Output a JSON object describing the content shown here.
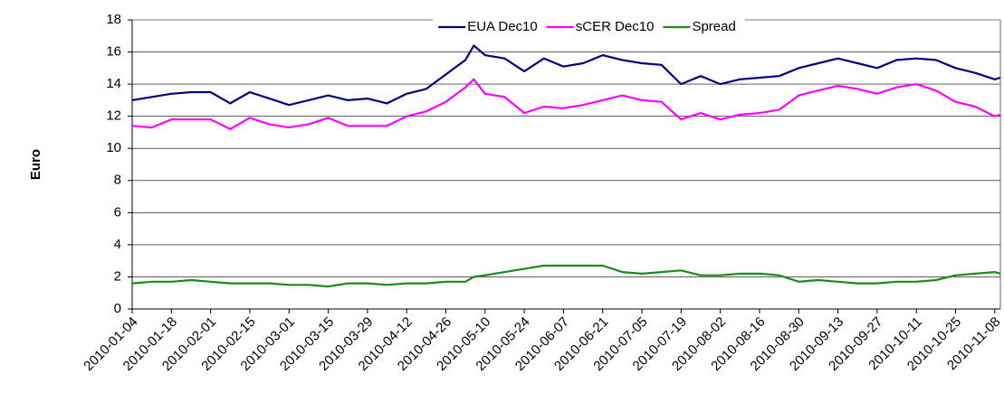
{
  "chart_data": {
    "type": "line",
    "y_label": "Euro",
    "x": [
      "2010-01-04",
      "2010-01-11",
      "2010-01-18",
      "2010-01-25",
      "2010-02-01",
      "2010-02-08",
      "2010-02-15",
      "2010-02-22",
      "2010-03-01",
      "2010-03-08",
      "2010-03-15",
      "2010-03-22",
      "2010-03-29",
      "2010-04-05",
      "2010-04-12",
      "2010-04-19",
      "2010-04-26",
      "2010-05-03",
      "2010-05-06",
      "2010-05-10",
      "2010-05-17",
      "2010-05-24",
      "2010-05-31",
      "2010-06-07",
      "2010-06-14",
      "2010-06-21",
      "2010-06-28",
      "2010-07-05",
      "2010-07-12",
      "2010-07-19",
      "2010-07-26",
      "2010-08-02",
      "2010-08-09",
      "2010-08-16",
      "2010-08-23",
      "2010-08-30",
      "2010-09-06",
      "2010-09-13",
      "2010-09-20",
      "2010-09-27",
      "2010-10-04",
      "2010-10-11",
      "2010-10-18",
      "2010-10-25",
      "2010-11-01",
      "2010-11-08",
      "2010-11-10"
    ],
    "series": [
      {
        "name": "EUA Dec10",
        "color": "#000080",
        "values": [
          13.0,
          13.2,
          13.4,
          13.5,
          13.5,
          12.8,
          13.5,
          13.1,
          12.7,
          13.0,
          13.3,
          13.0,
          13.1,
          12.8,
          13.4,
          13.7,
          14.6,
          15.5,
          16.4,
          15.8,
          15.6,
          14.8,
          15.6,
          15.1,
          15.3,
          15.8,
          15.5,
          15.3,
          15.2,
          14.0,
          14.5,
          14.0,
          14.3,
          14.4,
          14.5,
          15.0,
          15.3,
          15.6,
          15.3,
          15.0,
          15.5,
          15.6,
          15.5,
          15.0,
          14.7,
          14.3,
          14.4
        ]
      },
      {
        "name": "sCER Dec10",
        "color": "#ff00ff",
        "values": [
          11.4,
          11.3,
          11.8,
          11.8,
          11.8,
          11.2,
          11.9,
          11.5,
          11.3,
          11.5,
          11.9,
          11.4,
          11.4,
          11.4,
          12.0,
          12.3,
          12.9,
          13.8,
          14.3,
          13.4,
          13.2,
          12.2,
          12.6,
          12.5,
          12.7,
          13.0,
          13.3,
          13.0,
          12.9,
          11.8,
          12.2,
          11.8,
          12.1,
          12.2,
          12.4,
          13.3,
          13.6,
          13.9,
          13.7,
          13.4,
          13.8,
          14.0,
          13.6,
          12.9,
          12.6,
          12.0,
          12.1
        ]
      },
      {
        "name": "Spread",
        "color": "#1a8a1a",
        "values": [
          1.6,
          1.7,
          1.7,
          1.8,
          1.7,
          1.6,
          1.6,
          1.6,
          1.5,
          1.5,
          1.4,
          1.6,
          1.6,
          1.5,
          1.6,
          1.6,
          1.7,
          1.7,
          2.0,
          2.1,
          2.3,
          2.5,
          2.7,
          2.7,
          2.7,
          2.7,
          2.3,
          2.2,
          2.3,
          2.4,
          2.1,
          2.1,
          2.2,
          2.2,
          2.1,
          1.7,
          1.8,
          1.7,
          1.6,
          1.6,
          1.7,
          1.7,
          1.8,
          2.1,
          2.2,
          2.3,
          2.2
        ]
      }
    ],
    "xlim": [
      "2010-01-04",
      "2010-11-10"
    ],
    "xticks": [
      "2010-01-04",
      "2010-01-18",
      "2010-02-01",
      "2010-02-15",
      "2010-03-01",
      "2010-03-15",
      "2010-03-29",
      "2010-04-12",
      "2010-04-26",
      "2010-05-10",
      "2010-05-24",
      "2010-06-07",
      "2010-06-21",
      "2010-07-05",
      "2010-07-19",
      "2010-08-02",
      "2010-08-16",
      "2010-08-30",
      "2010-09-13",
      "2010-09-27",
      "2010-10-11",
      "2010-10-25",
      "2010-11-08"
    ],
    "ylim": [
      0,
      18
    ],
    "yticks": [
      0,
      2,
      4,
      6,
      8,
      10,
      12,
      14,
      16,
      18
    ],
    "grid": true,
    "legend": "top"
  }
}
